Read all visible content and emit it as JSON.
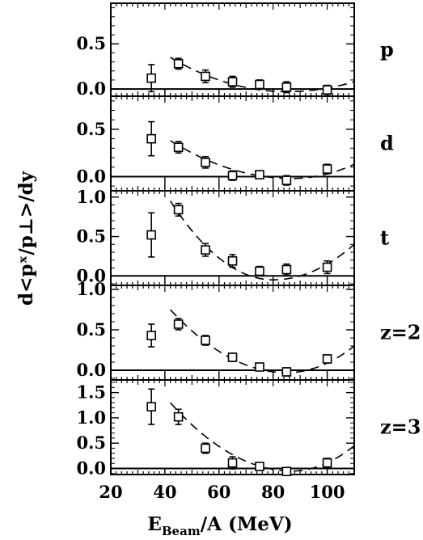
{
  "chart_data": {
    "type": "scatter",
    "xlabel": {
      "base": "E",
      "sub": "Beam",
      "rest": "/A (MeV)"
    },
    "ylabel": "d<pˣ/p⊥>/dy",
    "xlim": [
      20,
      110
    ],
    "xticks": [
      20,
      40,
      60,
      80,
      100
    ],
    "grid": false,
    "panels": [
      {
        "label": "p",
        "ylim": [
          -0.08,
          0.95
        ],
        "yticks": [
          0.0,
          0.5
        ],
        "ytick_labels": [
          "0.0",
          "0.5"
        ],
        "points": [
          {
            "x": 35,
            "y": 0.12,
            "err": 0.15
          },
          {
            "x": 45,
            "y": 0.28,
            "err": 0.06
          },
          {
            "x": 55,
            "y": 0.14,
            "err": 0.07
          },
          {
            "x": 65,
            "y": 0.08,
            "err": 0.06
          },
          {
            "x": 75,
            "y": 0.05,
            "err": 0.05
          },
          {
            "x": 85,
            "y": 0.02,
            "err": 0.06
          },
          {
            "x": 100,
            "y": -0.01,
            "err": 0.05
          }
        ],
        "curve": {
          "x": [
            42,
            110
          ],
          "y": [
            0.35,
            0.08
          ],
          "min_x": 85,
          "min_y": -0.03
        }
      },
      {
        "label": "d",
        "ylim": [
          -0.15,
          0.85
        ],
        "yticks": [
          0.0,
          0.5
        ],
        "ytick_labels": [
          "0.0",
          "0.5"
        ],
        "points": [
          {
            "x": 35,
            "y": 0.4,
            "err": 0.18
          },
          {
            "x": 45,
            "y": 0.31,
            "err": 0.06
          },
          {
            "x": 55,
            "y": 0.15,
            "err": 0.06
          },
          {
            "x": 65,
            "y": 0.01,
            "err": 0.05
          },
          {
            "x": 75,
            "y": 0.02,
            "err": 0.04
          },
          {
            "x": 85,
            "y": -0.04,
            "err": 0.05
          },
          {
            "x": 100,
            "y": 0.08,
            "err": 0.05
          }
        ],
        "curve": {
          "x": [
            42,
            110
          ],
          "y": [
            0.38,
            0.13
          ],
          "min_x": 87,
          "min_y": -0.02
        }
      },
      {
        "label": "t",
        "ylim": [
          -0.12,
          1.08
        ],
        "yticks": [
          0.0,
          0.5,
          1.0
        ],
        "ytick_labels": [
          "0.0",
          "0.5",
          "1.0"
        ],
        "points": [
          {
            "x": 35,
            "y": 0.52,
            "err": 0.28
          },
          {
            "x": 45,
            "y": 0.84,
            "err": 0.08
          },
          {
            "x": 55,
            "y": 0.33,
            "err": 0.08
          },
          {
            "x": 65,
            "y": 0.19,
            "err": 0.08
          },
          {
            "x": 75,
            "y": 0.06,
            "err": 0.06
          },
          {
            "x": 85,
            "y": 0.08,
            "err": 0.07
          },
          {
            "x": 100,
            "y": 0.11,
            "err": 0.08
          }
        ],
        "curve": {
          "x": [
            42,
            110
          ],
          "y": [
            0.95,
            0.4
          ],
          "min_x": 80,
          "min_y": -0.05
        }
      },
      {
        "label": "z=2",
        "ylim": [
          -0.12,
          1.05
        ],
        "yticks": [
          0.0,
          0.5,
          1.0
        ],
        "ytick_labels": [
          "0.0",
          "0.5",
          "1.0"
        ],
        "points": [
          {
            "x": 35,
            "y": 0.43,
            "err": 0.14
          },
          {
            "x": 45,
            "y": 0.57,
            "err": 0.07
          },
          {
            "x": 55,
            "y": 0.37,
            "err": 0.06
          },
          {
            "x": 65,
            "y": 0.16,
            "err": 0.05
          },
          {
            "x": 75,
            "y": 0.04,
            "err": 0.04
          },
          {
            "x": 85,
            "y": -0.02,
            "err": 0.05
          },
          {
            "x": 100,
            "y": 0.14,
            "err": 0.05
          }
        ],
        "curve": {
          "x": [
            42,
            110
          ],
          "y": [
            0.75,
            0.3
          ],
          "min_x": 85,
          "min_y": -0.03
        }
      },
      {
        "label": "z=3",
        "ylim": [
          -0.12,
          1.75
        ],
        "yticks": [
          0.0,
          0.5,
          1.0,
          1.5
        ],
        "ytick_labels": [
          "0.0",
          "0.5",
          "1.0",
          "1.5"
        ],
        "points": [
          {
            "x": 35,
            "y": 1.22,
            "err": 0.35
          },
          {
            "x": 45,
            "y": 1.02,
            "err": 0.15
          },
          {
            "x": 55,
            "y": 0.4,
            "err": 0.1
          },
          {
            "x": 65,
            "y": 0.11,
            "err": 0.12
          },
          {
            "x": 75,
            "y": 0.04,
            "err": 0.06
          },
          {
            "x": 85,
            "y": -0.06,
            "err": 0.07
          },
          {
            "x": 100,
            "y": 0.11,
            "err": 0.09
          }
        ],
        "curve": {
          "x": [
            42,
            110
          ],
          "y": [
            1.3,
            0.45
          ],
          "min_x": 87,
          "min_y": -0.05
        }
      }
    ]
  }
}
